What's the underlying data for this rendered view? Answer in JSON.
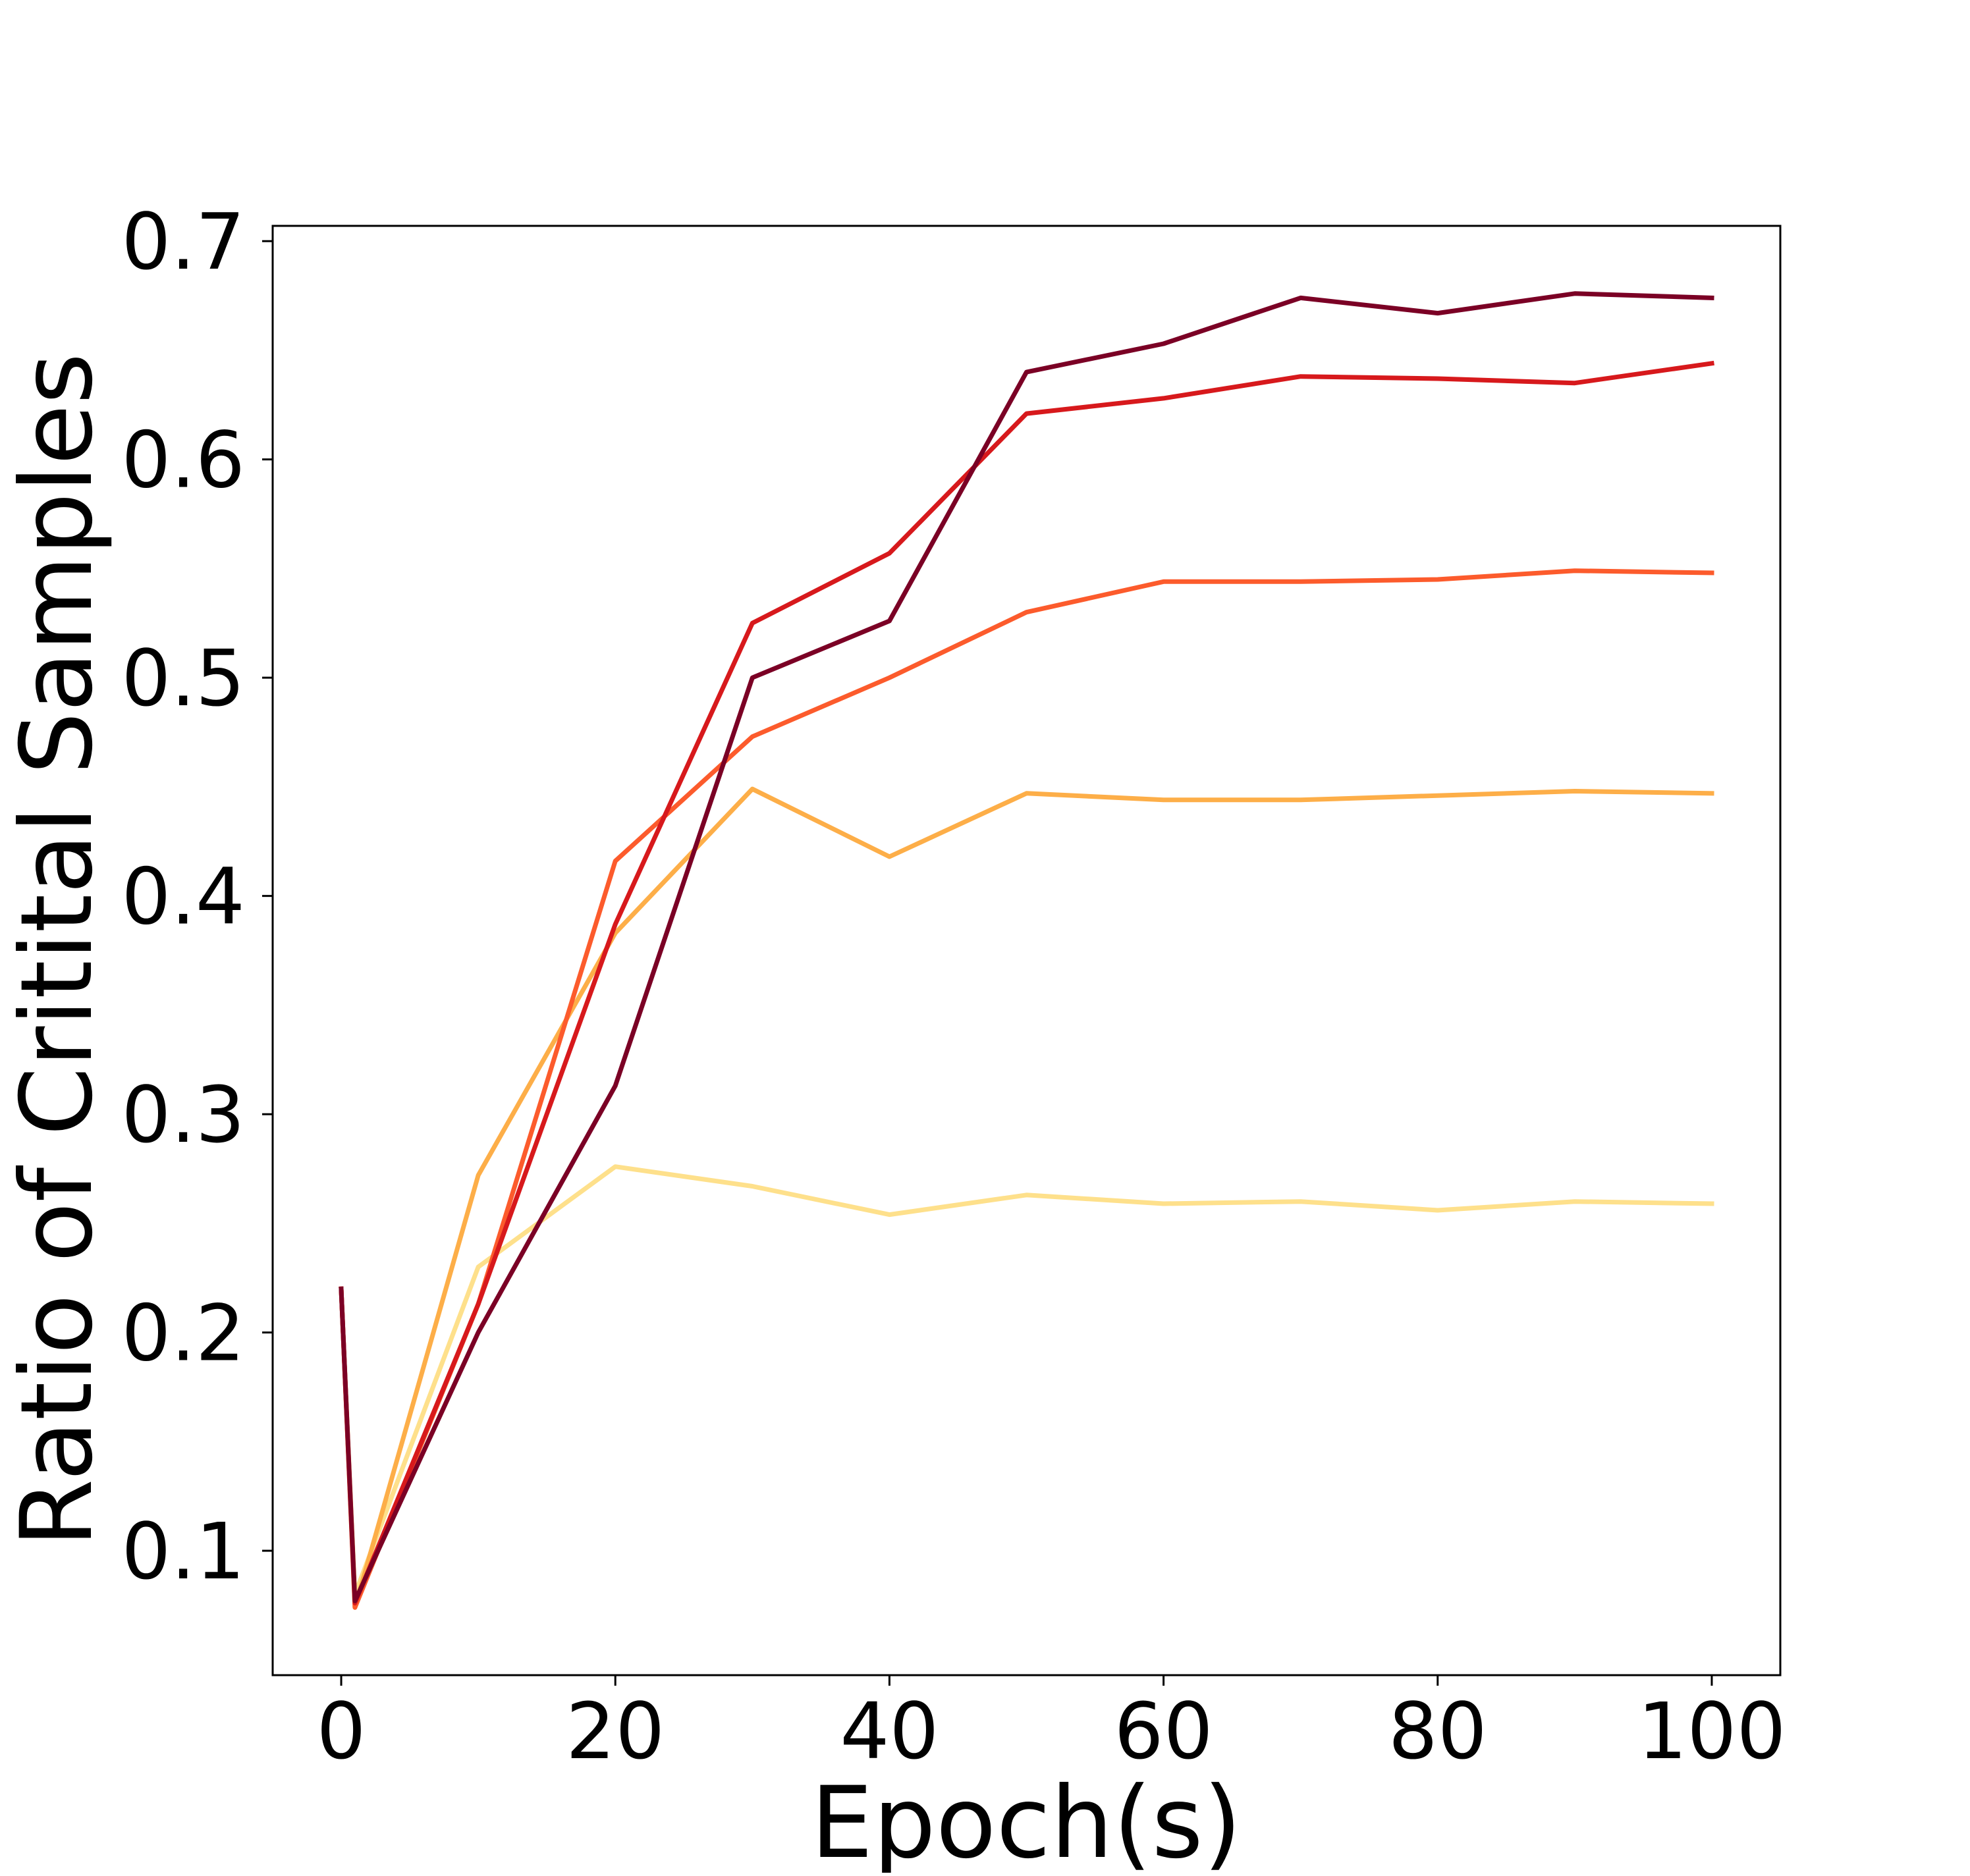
{
  "chart_data": {
    "type": "line",
    "xlabel": "Epoch(s)",
    "ylabel": "Ratio of Critital Samples",
    "xlim": [
      -5,
      105
    ],
    "ylim": [
      0.043,
      0.707
    ],
    "xticks": [
      0,
      20,
      40,
      60,
      80,
      100
    ],
    "xtick_labels": [
      "0",
      "20",
      "40",
      "60",
      "80",
      "100"
    ],
    "yticks": [
      0.1,
      0.2,
      0.3,
      0.4,
      0.5,
      0.6,
      0.7
    ],
    "ytick_labels": [
      "0.1",
      "0.2",
      "0.3",
      "0.4",
      "0.5",
      "0.6",
      "0.7"
    ],
    "grid": false,
    "x": [
      0,
      1,
      10,
      20,
      30,
      40,
      50,
      60,
      70,
      80,
      90,
      100
    ],
    "series": [
      {
        "color": "#fee08b",
        "values": [
          0.22,
          0.08,
          0.23,
          0.276,
          0.267,
          0.254,
          0.263,
          0.259,
          0.26,
          0.256,
          0.26,
          0.259
        ]
      },
      {
        "color": "#fdae48",
        "values": [
          0.22,
          0.074,
          0.272,
          0.383,
          0.449,
          0.418,
          0.447,
          0.444,
          0.444,
          0.446,
          0.448,
          0.447
        ]
      },
      {
        "color": "#fc5b2c",
        "values": [
          0.22,
          0.074,
          0.213,
          0.416,
          0.473,
          0.5,
          0.53,
          0.544,
          0.544,
          0.545,
          0.549,
          0.548
        ]
      },
      {
        "color": "#d7191c",
        "values": [
          0.22,
          0.076,
          0.213,
          0.387,
          0.525,
          0.557,
          0.621,
          0.628,
          0.638,
          0.637,
          0.635,
          0.644
        ]
      },
      {
        "color": "#7b0025",
        "values": [
          0.22,
          0.077,
          0.2,
          0.313,
          0.5,
          0.526,
          0.64,
          0.653,
          0.674,
          0.667,
          0.676,
          0.674
        ]
      }
    ]
  }
}
